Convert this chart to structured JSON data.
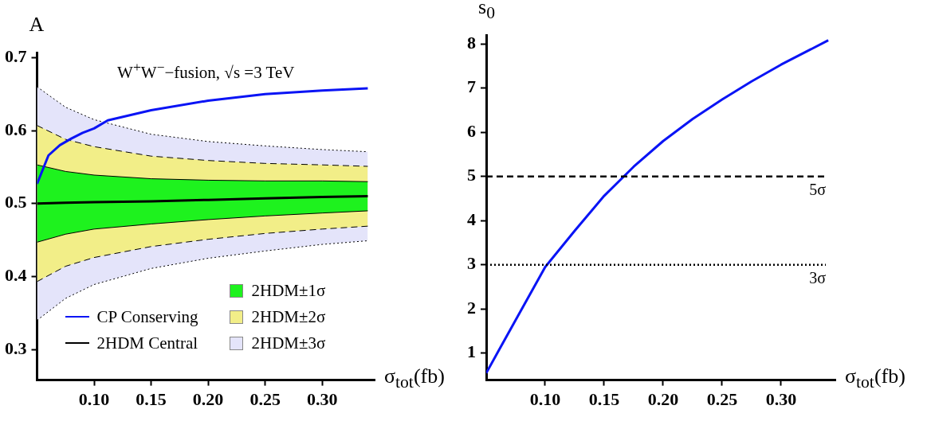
{
  "chart_data": [
    {
      "type": "line",
      "ylabel": "A",
      "xlabel": "σ$_{tot}$(fb)",
      "annotations": [
        "W$^{+}$W$^{−}$−fusion, √s =3 TeV"
      ],
      "legend": "bottom right",
      "grid": false,
      "xlim": [
        0.05,
        0.346
      ],
      "ylim": [
        0.258,
        0.707
      ],
      "xticks": [
        {
          "value": 0.1,
          "label": "0.10"
        },
        {
          "value": 0.15,
          "label": "0.15"
        },
        {
          "value": 0.2,
          "label": "0.20"
        },
        {
          "value": 0.25,
          "label": "0.25"
        },
        {
          "value": 0.3,
          "label": "0.30"
        }
      ],
      "yticks": [
        0.3,
        0.4,
        0.5,
        0.6,
        0.7
      ],
      "x": [
        0.05,
        0.075,
        0.1,
        0.15,
        0.2,
        0.25,
        0.3,
        0.34
      ],
      "series": [
        {
          "name": "2HDM±3σ",
          "type": "area",
          "color": "#e4e4fa",
          "line_style": "dotted",
          "values": [
            0.66,
            0.632,
            0.615,
            0.595,
            0.585,
            0.579,
            0.574,
            0.571
          ]
        },
        {
          "type": "line",
          "color": "#000000",
          "line_style": "dotted",
          "values": [
            0.34,
            0.37,
            0.389,
            0.411,
            0.425,
            0.435,
            0.444,
            0.449
          ]
        },
        {
          "name": "2HDM±2σ",
          "type": "area",
          "color": "#f2ee88",
          "line_style": "dashed",
          "values": [
            0.607,
            0.588,
            0.578,
            0.565,
            0.559,
            0.555,
            0.553,
            0.551
          ]
        },
        {
          "type": "line",
          "color": "#000000",
          "line_style": "dashed",
          "values": [
            0.393,
            0.414,
            0.426,
            0.441,
            0.451,
            0.459,
            0.465,
            0.469
          ]
        },
        {
          "name": "2HDM±1σ",
          "type": "area",
          "color": "#1ef21e",
          "line_style": "solid",
          "values": [
            0.553,
            0.544,
            0.539,
            0.534,
            0.532,
            0.531,
            0.531,
            0.53
          ]
        },
        {
          "type": "line",
          "color": "#000000",
          "line_style": "solid",
          "values": [
            0.447,
            0.458,
            0.465,
            0.472,
            0.478,
            0.483,
            0.487,
            0.49
          ]
        },
        {
          "name": "2HDM Central",
          "type": "line",
          "color": "#000000",
          "values": [
            0.5,
            0.501,
            0.502,
            0.503,
            0.505,
            0.507,
            0.509,
            0.51
          ]
        },
        {
          "name": "CP Conserving",
          "type": "line",
          "color": "#0a14f5",
          "x": [
            0.05,
            0.06,
            0.07,
            0.08,
            0.09,
            0.1,
            0.112,
            0.15,
            0.2,
            0.25,
            0.3,
            0.34
          ],
          "values": [
            0.527,
            0.566,
            0.58,
            0.589,
            0.597,
            0.603,
            0.614,
            0.628,
            0.641,
            0.65,
            0.655,
            0.658
          ]
        }
      ]
    },
    {
      "type": "line",
      "ylabel": "s$_{0}$",
      "xlabel": "σ$_{tot}$(fb)",
      "legend": false,
      "grid": false,
      "xlim": [
        0.05,
        0.346
      ],
      "ylim": [
        0.39,
        8.2
      ],
      "xticks": [
        {
          "value": 0.1,
          "label": "0.10"
        },
        {
          "value": 0.15,
          "label": "0.15"
        },
        {
          "value": 0.2,
          "label": "0.20"
        },
        {
          "value": 0.25,
          "label": "0.25"
        },
        {
          "value": 0.3,
          "label": "0.30"
        }
      ],
      "yticks": [
        1,
        2,
        3,
        4,
        5,
        6,
        7,
        8
      ],
      "ref_lines": [
        {
          "axis": "y",
          "value": 5,
          "label": "5σ",
          "line_style": "dashed",
          "color": "#000000"
        },
        {
          "axis": "y",
          "value": 3,
          "label": "3σ",
          "line_style": "dotted",
          "color": "#000000"
        }
      ],
      "series": [
        {
          "color": "#0a14f5",
          "x": [
            0.05,
            0.06,
            0.075,
            0.1,
            0.125,
            0.15,
            0.175,
            0.2,
            0.225,
            0.25,
            0.275,
            0.3,
            0.34
          ],
          "values": [
            0.55,
            1.03,
            1.75,
            2.95,
            3.77,
            4.56,
            5.22,
            5.8,
            6.3,
            6.74,
            7.15,
            7.53,
            8.08
          ]
        }
      ]
    }
  ]
}
